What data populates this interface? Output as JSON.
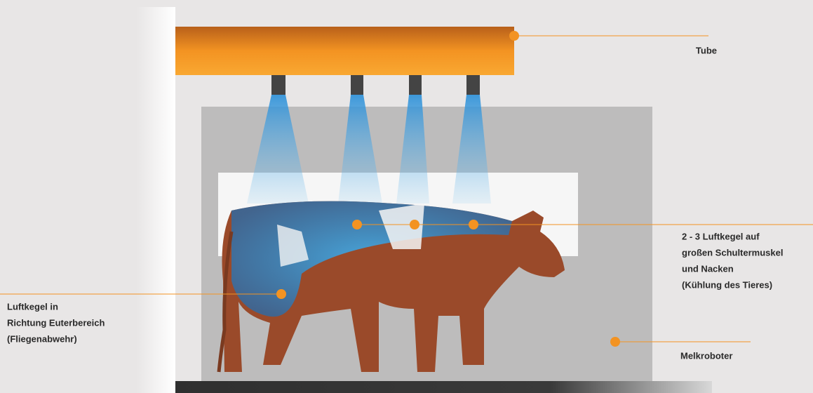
{
  "labels": {
    "tube": "Tube",
    "shoulder": [
      "2 - 3 Luftkegel auf",
      "großen Schultermuskel",
      "und Nacken",
      "(Kühlung des Tieres)"
    ],
    "udder": [
      "Luftkegel in",
      "Richtung Euterbereich",
      "(Fliegenabwehr)"
    ],
    "robot": "Melkroboter"
  }
}
